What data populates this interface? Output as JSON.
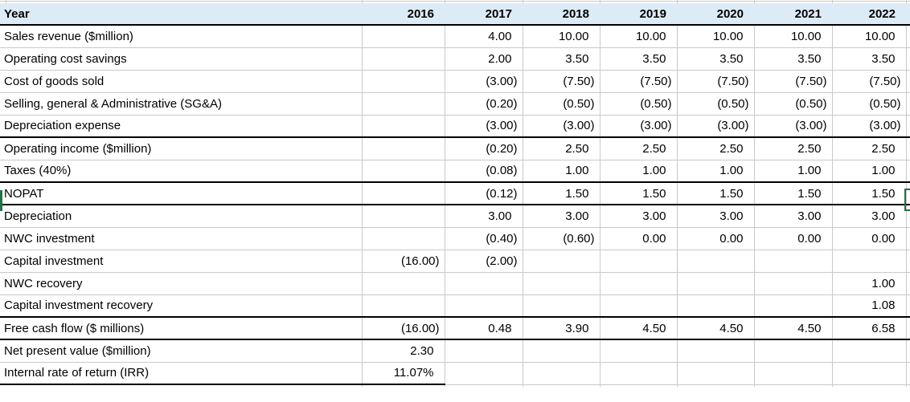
{
  "sheet": {
    "header": {
      "label": "Year",
      "years": [
        "2016",
        "2017",
        "2018",
        "2019",
        "2020",
        "2021",
        "2022"
      ]
    },
    "rows": [
      {
        "label": "Sales revenue ($million)",
        "values": [
          "",
          "4.00",
          "10.00",
          "10.00",
          "10.00",
          "10.00",
          "10.00"
        ]
      },
      {
        "label": "Operating cost savings",
        "values": [
          "",
          "2.00",
          "3.50",
          "3.50",
          "3.50",
          "3.50",
          "3.50"
        ]
      },
      {
        "label": "Cost of goods sold",
        "values": [
          "",
          "(3.00)",
          "(7.50)",
          "(7.50)",
          "(7.50)",
          "(7.50)",
          "(7.50)"
        ]
      },
      {
        "label": "Selling, general & Administrative (SG&A)",
        "values": [
          "",
          "(0.20)",
          "(0.50)",
          "(0.50)",
          "(0.50)",
          "(0.50)",
          "(0.50)"
        ]
      },
      {
        "label": "Depreciation expense",
        "values": [
          "",
          "(3.00)",
          "(3.00)",
          "(3.00)",
          "(3.00)",
          "(3.00)",
          "(3.00)"
        ]
      },
      {
        "label": "Operating income ($million)",
        "values": [
          "",
          "(0.20)",
          "2.50",
          "2.50",
          "2.50",
          "2.50",
          "2.50"
        ]
      },
      {
        "label": "Taxes (40%)",
        "values": [
          "",
          "(0.08)",
          "1.00",
          "1.00",
          "1.00",
          "1.00",
          "1.00"
        ]
      },
      {
        "label": "NOPAT",
        "values": [
          "",
          "(0.12)",
          "1.50",
          "1.50",
          "1.50",
          "1.50",
          "1.50"
        ]
      },
      {
        "label": "Depreciation",
        "values": [
          "",
          "3.00",
          "3.00",
          "3.00",
          "3.00",
          "3.00",
          "3.00"
        ]
      },
      {
        "label": "NWC investment",
        "values": [
          "",
          "(0.40)",
          "(0.60)",
          "0.00",
          "0.00",
          "0.00",
          "0.00"
        ]
      },
      {
        "label": "Capital investment",
        "values": [
          "(16.00)",
          "(2.00)",
          "",
          "",
          "",
          "",
          ""
        ]
      },
      {
        "label": "NWC recovery",
        "values": [
          "",
          "",
          "",
          "",
          "",
          "",
          "1.00"
        ]
      },
      {
        "label": "Capital investment recovery",
        "values": [
          "",
          "",
          "",
          "",
          "",
          "",
          "1.08"
        ]
      },
      {
        "label": "Free cash flow ($ millions)",
        "values": [
          "(16.00)",
          "0.48",
          "3.90",
          "4.50",
          "4.50",
          "4.50",
          "6.58"
        ]
      },
      {
        "label": "Net present value ($million)",
        "values": [
          "2.30",
          "",
          "",
          "",
          "",
          "",
          ""
        ]
      },
      {
        "label": "Internal rate of return (IRR)",
        "values": [
          "11.07%",
          "",
          "",
          "",
          "",
          "",
          ""
        ]
      }
    ],
    "colors": {
      "header_bg": "#DDEBF7",
      "gridline": "#C9C9C9",
      "section_border": "#000000",
      "selection_green": "#217346"
    }
  }
}
